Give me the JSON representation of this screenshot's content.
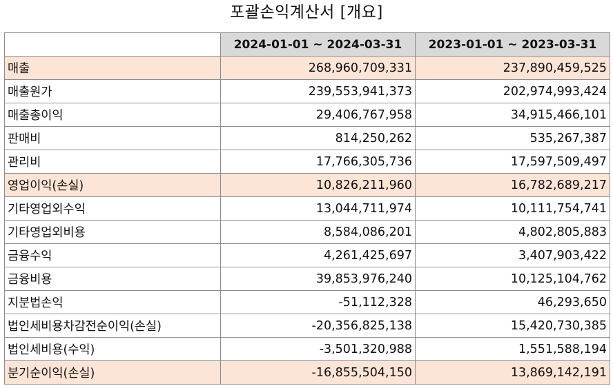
{
  "title": "포괄손익계산서 [개요]",
  "colors": {
    "header_bg": "#d9d9d9",
    "highlight_bg": "#fce4d6",
    "border": "#8c8c8c"
  },
  "columns": [
    "",
    "2024-01-01 ~ 2024-03-31",
    "2023-01-01 ~ 2023-03-31"
  ],
  "rows": [
    {
      "label": "매출",
      "v2024": "268,960,709,331",
      "v2023": "237,890,459,525",
      "highlight": true
    },
    {
      "label": "매출원가",
      "v2024": "239,553,941,373",
      "v2023": "202,974,993,424",
      "highlight": false
    },
    {
      "label": "매출총이익",
      "v2024": "29,406,767,958",
      "v2023": "34,915,466,101",
      "highlight": false
    },
    {
      "label": "판매비",
      "v2024": "814,250,262",
      "v2023": "535,267,387",
      "highlight": false
    },
    {
      "label": "관리비",
      "v2024": "17,766,305,736",
      "v2023": "17,597,509,497",
      "highlight": false
    },
    {
      "label": "영업이익(손실)",
      "v2024": "10,826,211,960",
      "v2023": "16,782,689,217",
      "highlight": true
    },
    {
      "label": "기타영업외수익",
      "v2024": "13,044,711,974",
      "v2023": "10,111,754,741",
      "highlight": false
    },
    {
      "label": "기타영업외비용",
      "v2024": "8,584,086,201",
      "v2023": "4,802,805,883",
      "highlight": false
    },
    {
      "label": "금융수익",
      "v2024": "4,261,425,697",
      "v2023": "3,407,903,422",
      "highlight": false
    },
    {
      "label": "금융비용",
      "v2024": "39,853,976,240",
      "v2023": "10,125,104,762",
      "highlight": false
    },
    {
      "label": "지분법손익",
      "v2024": "-51,112,328",
      "v2023": "46,293,650",
      "highlight": false
    },
    {
      "label": "법인세비용차감전순이익(손실)",
      "v2024": "-20,356,825,138",
      "v2023": "15,420,730,385",
      "highlight": false
    },
    {
      "label": "법인세비용(수익)",
      "v2024": "-3,501,320,988",
      "v2023": "1,551,588,194",
      "highlight": false
    },
    {
      "label": "분기순이익(손실)",
      "v2024": "-16,855,504,150",
      "v2023": "13,869,142,191",
      "highlight": true
    }
  ]
}
